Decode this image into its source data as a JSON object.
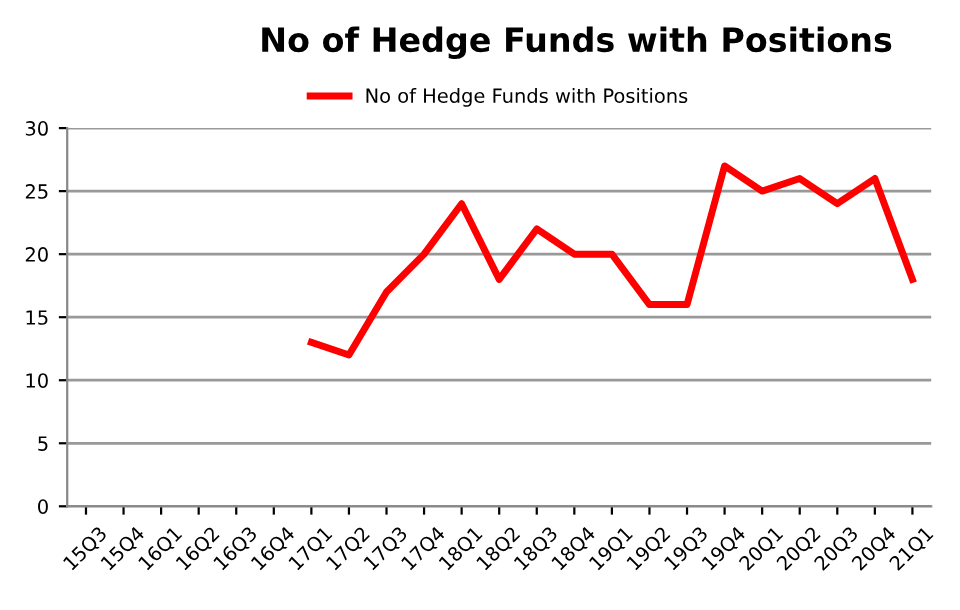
{
  "chart_data": {
    "type": "line",
    "title": "No of Hedge Funds with Positions",
    "categories": [
      "15Q3",
      "15Q4",
      "16Q1",
      "16Q2",
      "16Q3",
      "16Q4",
      "17Q1",
      "17Q2",
      "17Q3",
      "17Q4",
      "18Q1",
      "18Q2",
      "18Q3",
      "18Q4",
      "19Q1",
      "19Q2",
      "19Q3",
      "19Q4",
      "20Q1",
      "20Q2",
      "20Q3",
      "20Q4",
      "21Q1"
    ],
    "series": [
      {
        "name": "No of Hedge Funds with Positions",
        "color": "#ff0000",
        "values": [
          null,
          null,
          null,
          null,
          null,
          null,
          13,
          12,
          17,
          20,
          24,
          18,
          22,
          20,
          20,
          16,
          16,
          27,
          25,
          26,
          24,
          26,
          18
        ]
      }
    ],
    "ylim": [
      0,
      30
    ],
    "yticks": [
      0,
      5,
      10,
      15,
      20,
      25,
      30
    ],
    "grid": "y",
    "legend": "top",
    "marker": "none",
    "line_style": "solid"
  }
}
